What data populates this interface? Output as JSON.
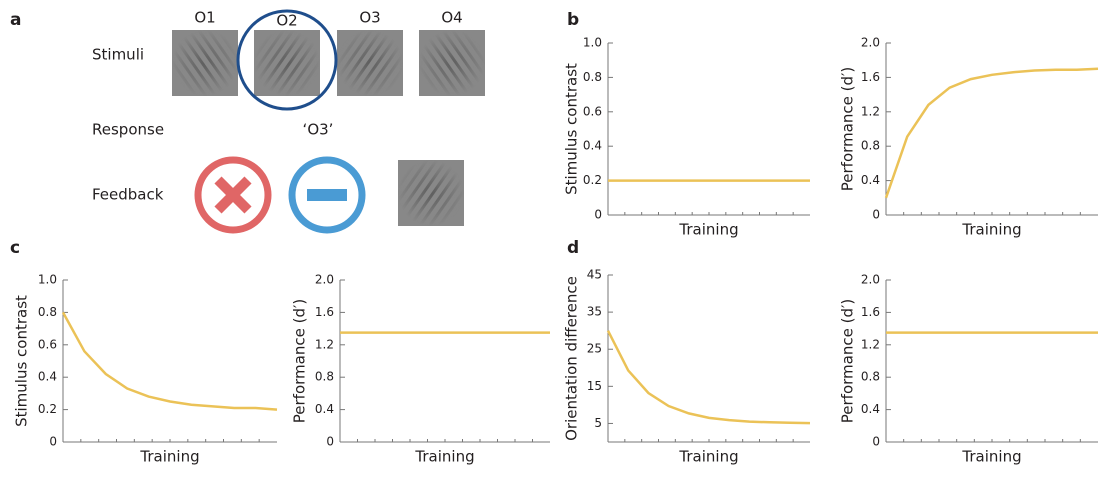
{
  "panel_labels": [
    "a",
    "b",
    "c",
    "d"
  ],
  "panel_a": {
    "rows": [
      "Stimuli",
      "Response",
      "Feedback"
    ],
    "stimuli": [
      "O1",
      "O2",
      "O3",
      "O4"
    ],
    "response": "‘O3’"
  },
  "chart_data": [
    {
      "type": "line",
      "ylabel": "Stimulus contrast",
      "xlabel": "Training",
      "color": "#ebc257",
      "x": [
        0,
        1,
        2,
        3,
        4,
        5,
        6,
        7,
        8,
        9,
        10
      ],
      "xlim": [
        0,
        10
      ],
      "values": [
        0.2,
        0.2,
        0.2,
        0.2,
        0.2,
        0.2,
        0.2,
        0.2,
        0.2,
        0.2,
        0.2
      ],
      "ylim": [
        0,
        1
      ],
      "yticks": [
        0,
        0.2,
        0.4,
        0.6,
        0.8,
        {
          "value": 1,
          "label": "1.0"
        }
      ]
    },
    {
      "type": "line",
      "ylabel": "Performance (d′)",
      "xlabel": "Training",
      "color": "#ebc257",
      "x": [
        0,
        1,
        2,
        3,
        4,
        5,
        6,
        7,
        8,
        9,
        10
      ],
      "xlim": [
        0,
        10
      ],
      "values": [
        0.2,
        0.91,
        1.28,
        1.48,
        1.58,
        1.63,
        1.66,
        1.68,
        1.69,
        1.69,
        1.7
      ],
      "ylim": [
        0,
        2
      ],
      "yticks": [
        0,
        0.4,
        0.8,
        1.2,
        1.6,
        {
          "value": 2,
          "label": "2.0"
        }
      ]
    },
    {
      "type": "line",
      "ylabel": "Stimulus contrast",
      "xlabel": "Training",
      "color": "#ebc257",
      "x": [
        0,
        1,
        2,
        3,
        4,
        5,
        6,
        7,
        8,
        9,
        10
      ],
      "xlim": [
        0,
        10
      ],
      "values": [
        0.8,
        0.56,
        0.42,
        0.33,
        0.28,
        0.25,
        0.23,
        0.22,
        0.21,
        0.21,
        0.2
      ],
      "ylim": [
        0,
        1
      ],
      "yticks": [
        0,
        0.2,
        0.4,
        0.6,
        0.8,
        {
          "value": 1,
          "label": "1.0"
        }
      ]
    },
    {
      "type": "line",
      "ylabel": "Performance (d′)",
      "xlabel": "Training",
      "color": "#ebc257",
      "x": [
        0,
        1,
        2,
        3,
        4,
        5,
        6,
        7,
        8,
        9,
        10
      ],
      "xlim": [
        0,
        10
      ],
      "values": [
        1.35,
        1.35,
        1.35,
        1.35,
        1.35,
        1.35,
        1.35,
        1.35,
        1.35,
        1.35,
        1.35
      ],
      "ylim": [
        0,
        2
      ],
      "yticks": [
        0,
        0.4,
        0.8,
        1.2,
        1.6,
        {
          "value": 2,
          "label": "2.0"
        }
      ]
    },
    {
      "type": "line",
      "ylabel": "Orientation difference",
      "xlabel": "Training",
      "color": "#ebc257",
      "x": [
        0,
        1,
        2,
        3,
        4,
        5,
        6,
        7,
        8,
        9,
        10
      ],
      "xlim": [
        0,
        10
      ],
      "values": [
        30,
        19.3,
        13.2,
        9.7,
        7.7,
        6.5,
        5.9,
        5.5,
        5.3,
        5.2,
        5.1
      ],
      "ylim": [
        0,
        45
      ],
      "yticks": [
        5,
        15,
        25,
        35,
        45
      ]
    },
    {
      "type": "line",
      "ylabel": "Performance (d′)",
      "xlabel": "Training",
      "color": "#ebc257",
      "x": [
        0,
        1,
        2,
        3,
        4,
        5,
        6,
        7,
        8,
        9,
        10
      ],
      "xlim": [
        0,
        10
      ],
      "values": [
        1.35,
        1.35,
        1.35,
        1.35,
        1.35,
        1.35,
        1.35,
        1.35,
        1.35,
        1.35,
        1.35
      ],
      "ylim": [
        0,
        2
      ],
      "yticks": [
        0,
        0.4,
        0.8,
        1.2,
        1.6,
        {
          "value": 2,
          "label": "2.0"
        }
      ]
    }
  ]
}
